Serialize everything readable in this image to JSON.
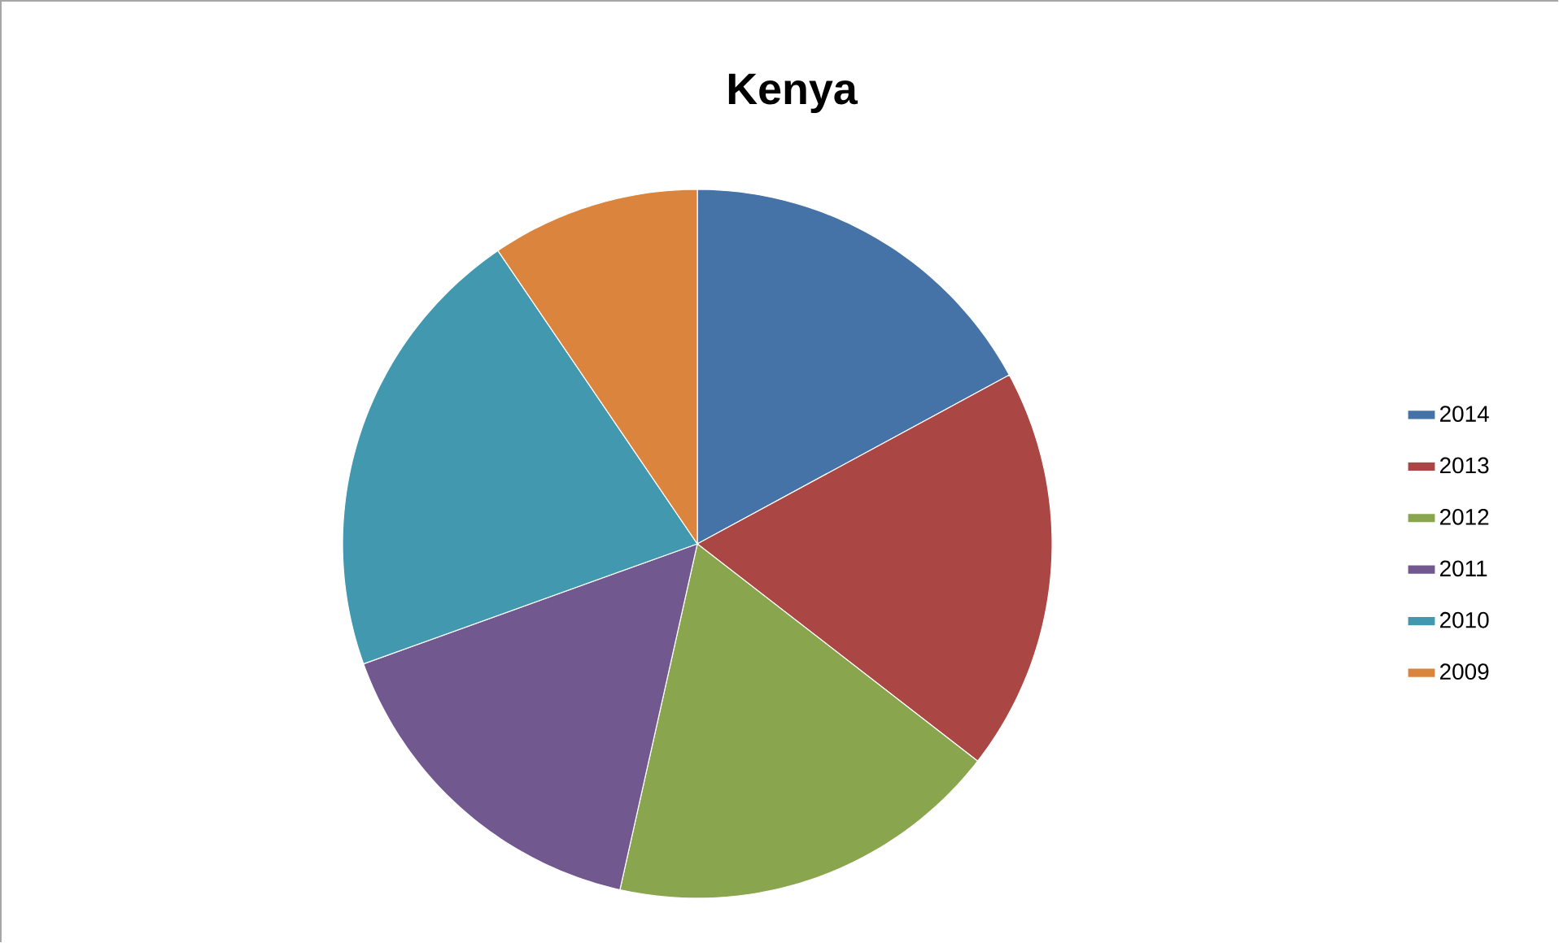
{
  "chart_data": {
    "type": "pie",
    "title": "Kenya",
    "categories": [
      "2014",
      "2013",
      "2012",
      "2011",
      "2010",
      "2009"
    ],
    "values": [
      17.1,
      18.4,
      18.0,
      16.0,
      21.0,
      9.5
    ],
    "colors": [
      "#4572a7",
      "#aa4643",
      "#89a54e",
      "#71588f",
      "#4198af",
      "#db843d"
    ],
    "legend": "right"
  }
}
